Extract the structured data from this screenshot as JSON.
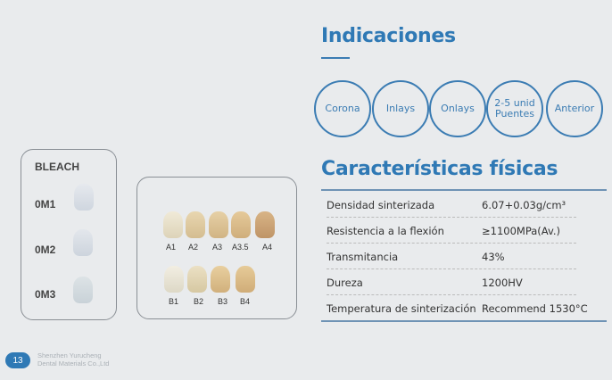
{
  "indicaciones": {
    "title": "Indicaciones",
    "items": [
      "Corona",
      "Inlays",
      "Onlays",
      "2-5 unid Puentes",
      "Anterior"
    ]
  },
  "caracteristicas": {
    "title": "Características físicas",
    "rows": [
      {
        "label": "Densidad sinterizada",
        "value": "6.07+0.03g/cm³"
      },
      {
        "label": "Resistencia a la flexión",
        "value": "≥1100MPa(Av.)"
      },
      {
        "label": "Transmitancia",
        "value": "43%"
      },
      {
        "label": "Dureza",
        "value": "1200HV"
      },
      {
        "label": "Temperatura de sinterización",
        "value": "Recommend 1530°C"
      }
    ]
  },
  "bleach": {
    "title": "BLEACH",
    "shades": [
      "0M1",
      "0M2",
      "0M3"
    ]
  },
  "shades": {
    "row_a": [
      "A1",
      "A2",
      "A3",
      "A3.5",
      "A4"
    ],
    "row_b": [
      "B1",
      "B2",
      "B3",
      "B4"
    ]
  },
  "footer": {
    "page": "13",
    "company_line1": "Shenzhen Yurucheng",
    "company_line2": "Dental Materials Co.,Ltd"
  },
  "colors": {
    "accent": "#2f79b5"
  }
}
